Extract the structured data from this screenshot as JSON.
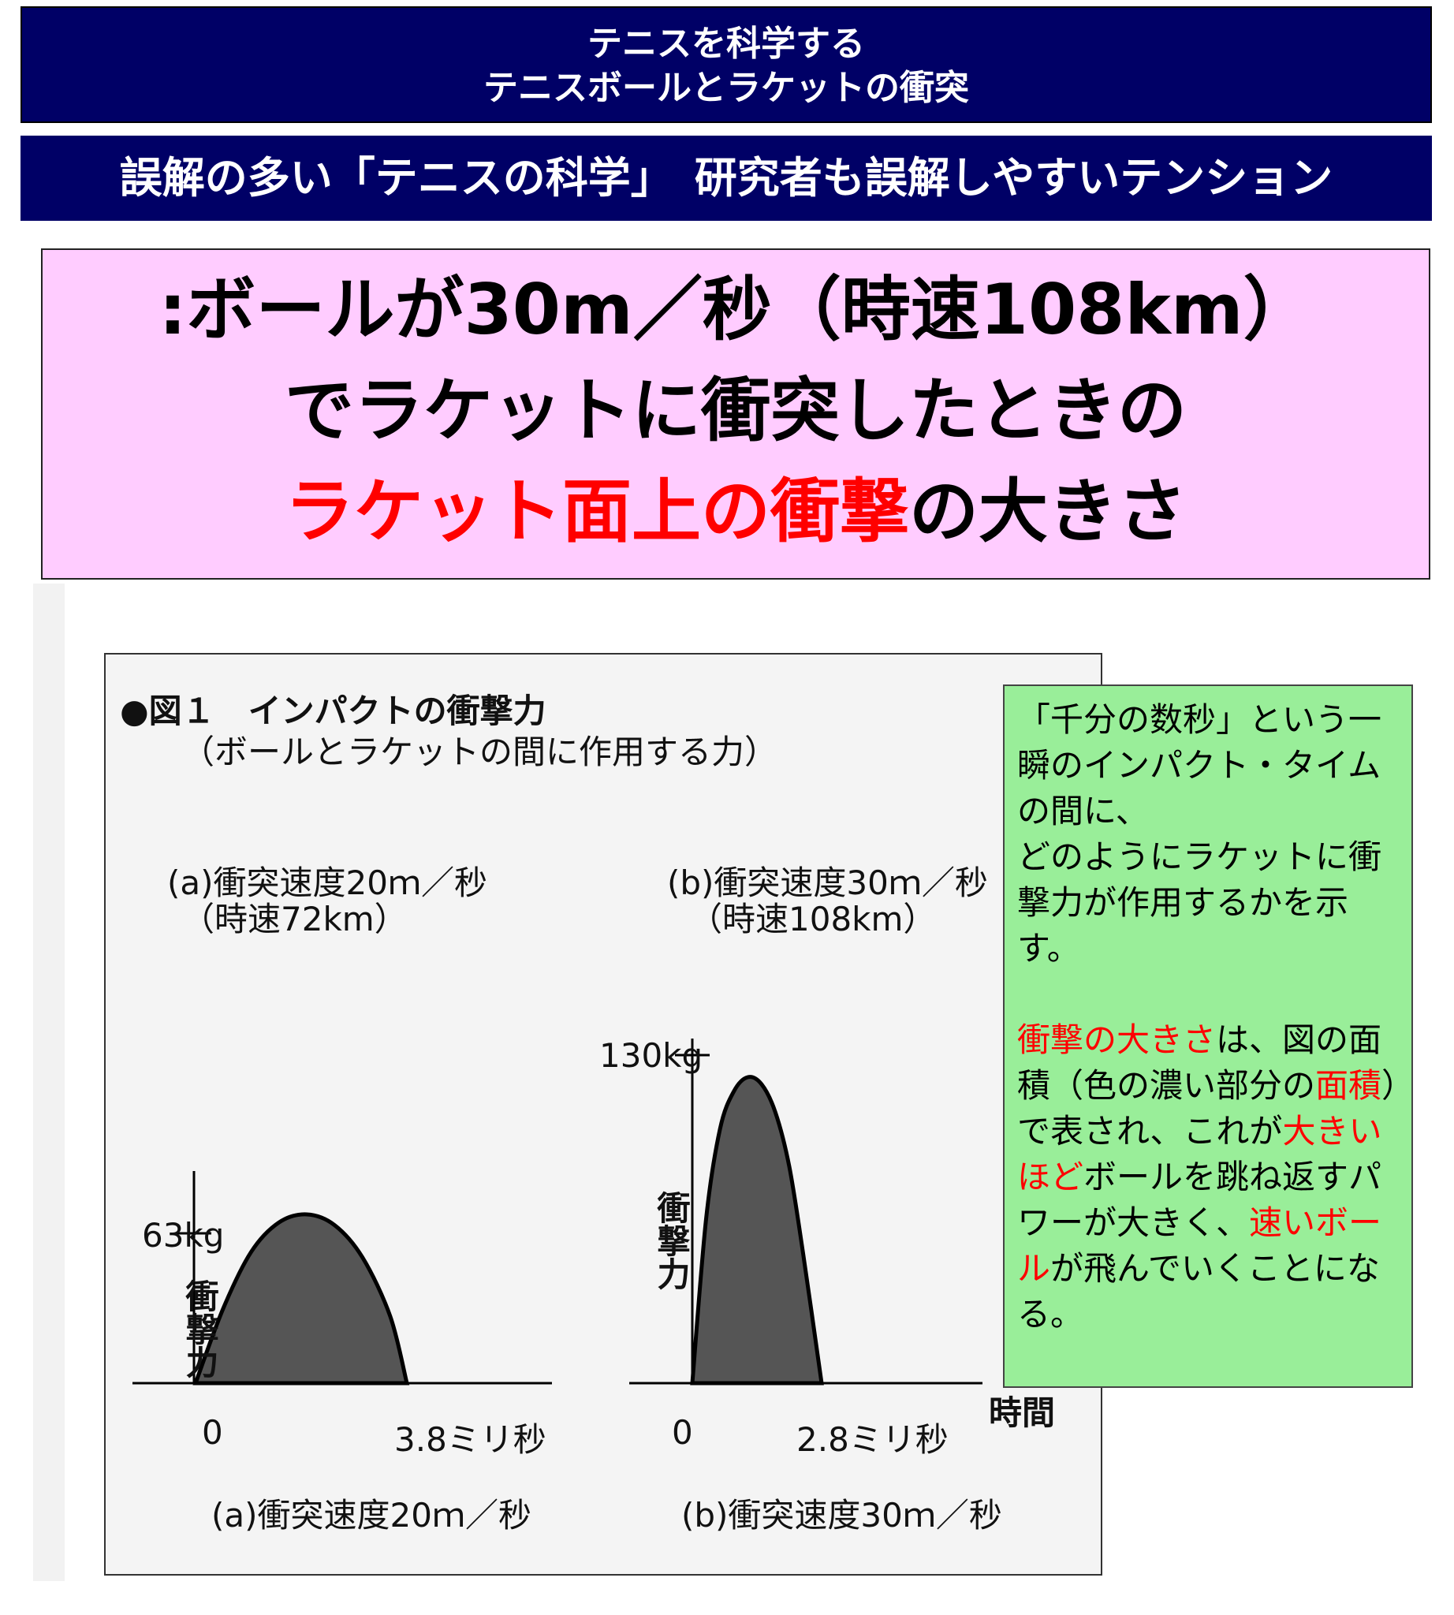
{
  "header": {
    "title_line1": "テニスを科学する",
    "title_line2": "テニスボールとラケットの衝突",
    "subtitle": "誤解の多い「テニスの科学」　研究者も誤解しやすいテンション"
  },
  "headline": {
    "line1": ":ボールが30m／秒（時速108km）",
    "line2": "でラケットに衝突したときの",
    "line3_red": "ラケット面上の衝撃",
    "line3_black": "の大きさ"
  },
  "figure": {
    "title_line1": "●図１　インパクトの衝撃力",
    "title_line2": "（ボールとラケットの間に作用する力）",
    "time_axis_label": "時間",
    "force_axis_label": "衝撃力"
  },
  "chart_data": [
    {
      "type": "area",
      "title": "(a)衝突速度20ｍ／秒",
      "subtitle": "（時速72km）",
      "caption": "(a)衝突速度20ｍ／秒",
      "xlabel": "時間",
      "ylabel": "衝撃力",
      "x_ticks": [
        "0",
        "3.8ミリ秒"
      ],
      "y_ticks": [
        "63kg"
      ],
      "x": [
        0,
        0.5,
        1.0,
        1.5,
        2.0,
        2.5,
        3.0,
        3.5,
        3.8
      ],
      "y": [
        0,
        28,
        49,
        60,
        63,
        59,
        47,
        25,
        0
      ],
      "peak_force_kg": 63,
      "duration_ms": 3.8
    },
    {
      "type": "area",
      "title": "(b)衝突速度30ｍ／秒",
      "subtitle": "（時速108km）",
      "caption": "(b)衝突速度30ｍ／秒",
      "xlabel": "時間",
      "ylabel": "衝撃力",
      "x_ticks": [
        "0",
        "2.8ミリ秒"
      ],
      "y_ticks": [
        "130kg"
      ],
      "x": [
        0,
        0.3,
        0.6,
        0.9,
        1.2,
        1.5,
        1.8,
        2.1,
        2.4,
        2.8
      ],
      "y": [
        0,
        70,
        108,
        124,
        130,
        127,
        115,
        92,
        55,
        0
      ],
      "peak_force_kg": 130,
      "duration_ms": 2.8
    }
  ],
  "note": {
    "p1": "「千分の数秒」という一瞬のインパクト・タイムの間に、",
    "p2": "どのようにラケットに衝撃力が作用するかを示す。",
    "p3_red1": "衝撃の大きさ",
    "p3_t1": "は、",
    "p3_t2": "図の面積（色の濃い部分の",
    "p3_red2": "面積",
    "p3_t3": "）で表され、",
    "p3_t4": "これが",
    "p3_red3": "大きいほど",
    "p3_t5": "ボールを跳ね返すパワーが大きく、",
    "p3_red4": "速いボール",
    "p3_t6": "が飛んでいくことになる。"
  },
  "colors": {
    "banner_bg": "#000066",
    "headline_bg": "#ffccff",
    "note_bg": "#99ee99",
    "emphasis": "#ff0000",
    "curve_fill": "#555555"
  }
}
